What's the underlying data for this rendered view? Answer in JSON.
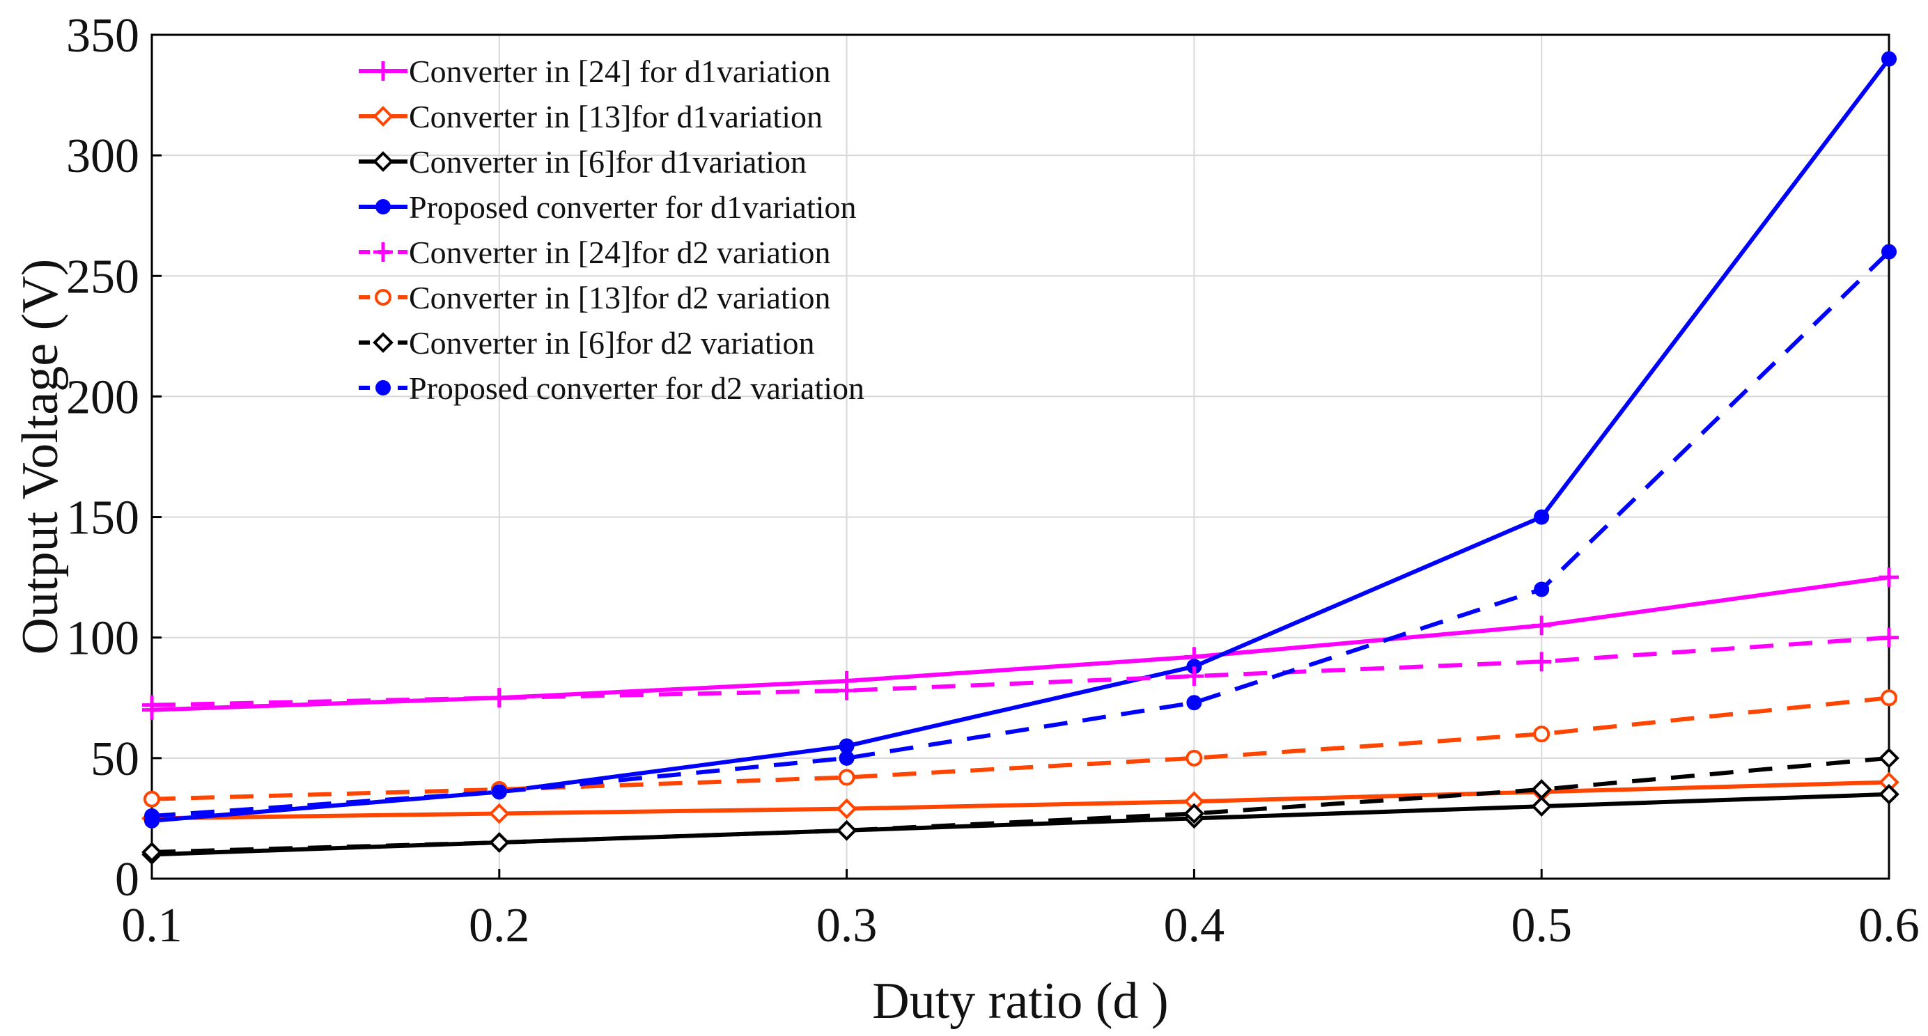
{
  "chart_data": {
    "type": "line",
    "title": "",
    "xlabel": "Duty ratio (d )",
    "ylabel": "Output Voltage (V)",
    "x": [
      0.1,
      0.2,
      0.3,
      0.4,
      0.5,
      0.6
    ],
    "x_tick_labels": [
      "0.1",
      "0.2",
      "0.3",
      "0.4",
      "0.5",
      "0.6"
    ],
    "xlim": [
      0.1,
      0.6
    ],
    "ylim": [
      0,
      350
    ],
    "y_ticks": [
      0,
      50,
      100,
      150,
      200,
      250,
      300,
      350
    ],
    "y_tick_labels": [
      "0",
      "50",
      "100",
      "150",
      "200",
      "250",
      "300",
      "350"
    ],
    "grid": true,
    "legend_position": "top-left",
    "series": [
      {
        "name": "Converter in [24] for d1variation",
        "color": "#ff00ff",
        "dash": "solid",
        "marker": "plus",
        "values": [
          70,
          75,
          82,
          92,
          105,
          125
        ]
      },
      {
        "name": "Converter in [13]for d1variation",
        "color": "#ff4500",
        "dash": "solid",
        "marker": "diamond",
        "values": [
          25,
          27,
          29,
          32,
          36,
          40
        ]
      },
      {
        "name": "Converter in [6]for d1variation",
        "color": "#000000",
        "dash": "solid",
        "marker": "diamond",
        "values": [
          10,
          15,
          20,
          25,
          30,
          35
        ]
      },
      {
        "name": "Proposed converter for d1variation",
        "color": "#0000ff",
        "dash": "solid",
        "marker": "dot",
        "values": [
          24,
          36,
          55,
          88,
          150,
          340
        ]
      },
      {
        "name": "Converter in [24]for d2 variation",
        "color": "#ff00ff",
        "dash": "dashed",
        "marker": "plus",
        "values": [
          72,
          75,
          78,
          84,
          90,
          100
        ]
      },
      {
        "name": "Converter in [13]for d2 variation",
        "color": "#ff4500",
        "dash": "dashed",
        "marker": "circle",
        "values": [
          33,
          37,
          42,
          50,
          60,
          75
        ]
      },
      {
        "name": "Converter in [6]for d2 variation",
        "color": "#000000",
        "dash": "dashed",
        "marker": "diamond",
        "values": [
          11,
          15,
          20,
          27,
          37,
          50
        ]
      },
      {
        "name": "Proposed converter for d2 variation",
        "color": "#0000ff",
        "dash": "dashed",
        "marker": "dot",
        "values": [
          26,
          36,
          50,
          73,
          120,
          260
        ]
      }
    ]
  }
}
